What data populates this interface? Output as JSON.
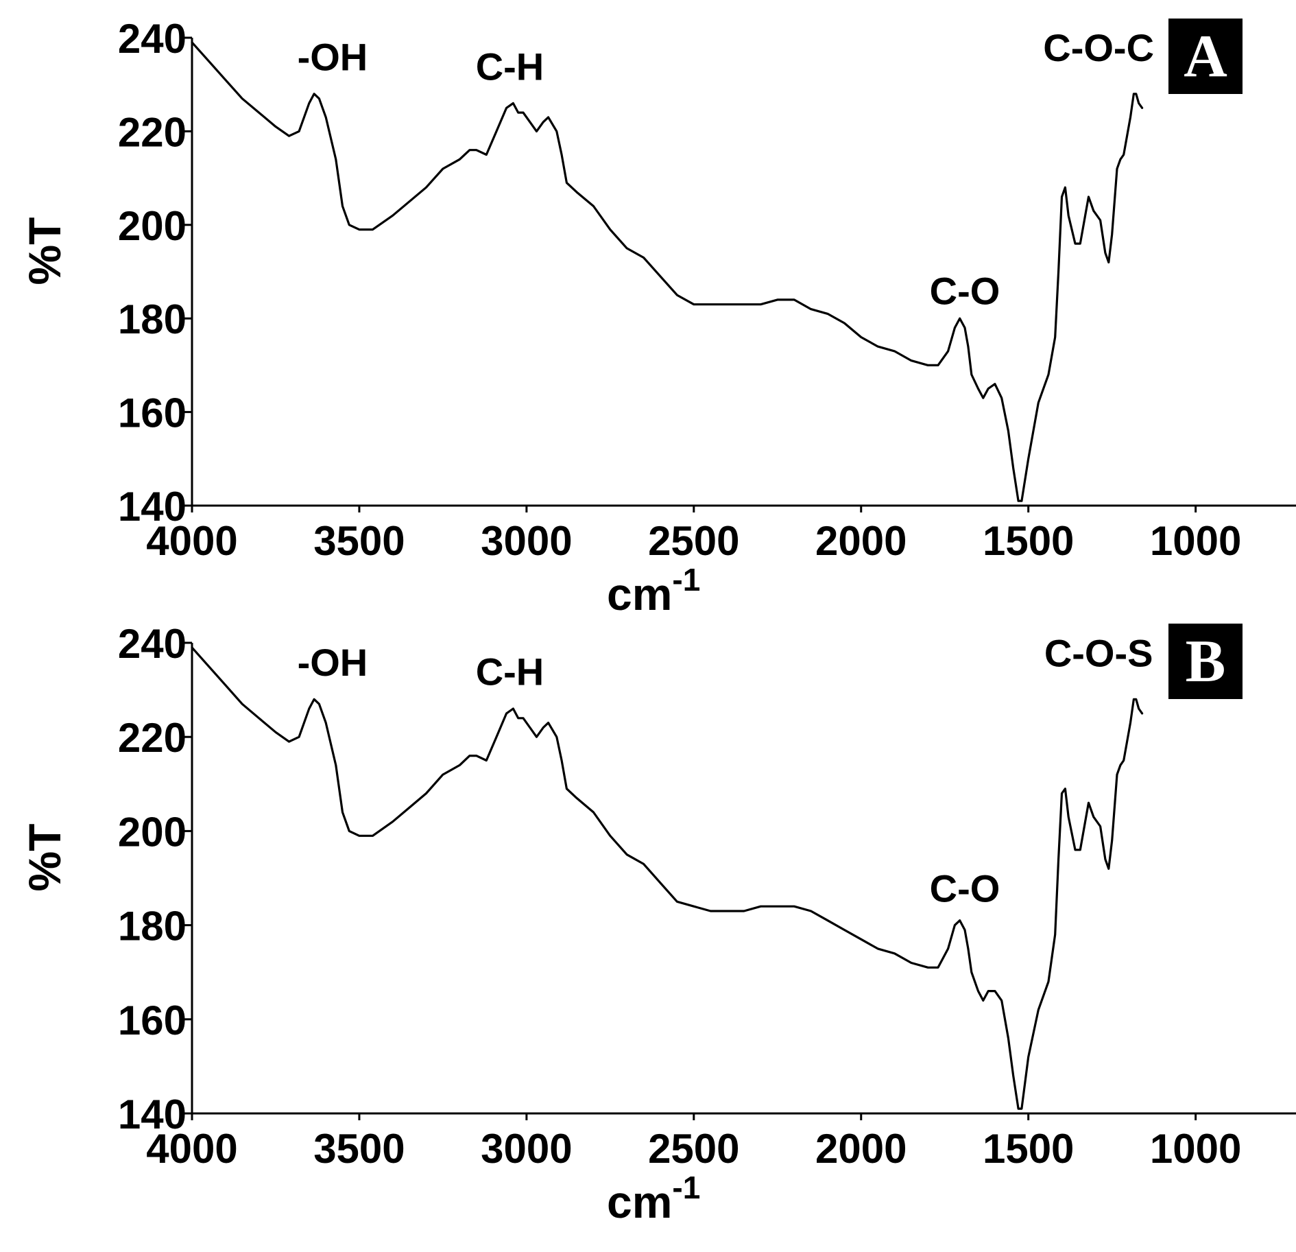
{
  "chart_data": [
    {
      "type": "line",
      "panel_label": "A",
      "xlabel": "cm",
      "xlabel_superscript": "-1",
      "ylabel": "%T",
      "xlim": [
        4000,
        700
      ],
      "ylim": [
        140,
        240
      ],
      "x_ticks": [
        4000,
        3500,
        3000,
        2500,
        2000,
        1500,
        1000
      ],
      "y_ticks": [
        140,
        160,
        180,
        200,
        220,
        240
      ],
      "x_tick_labels": [
        "4000",
        "3500",
        "3000",
        "2500",
        "2000",
        "1500",
        "1000"
      ],
      "y_tick_labels": [
        "140",
        "160",
        "180",
        "200",
        "220",
        "240"
      ],
      "grid": false,
      "annotations": [
        {
          "text": "-OH",
          "x": 3580,
          "y": 233
        },
        {
          "text": "C-H",
          "x": 3050,
          "y": 231
        },
        {
          "text": "C-O",
          "x": 1690,
          "y": 183
        },
        {
          "text": "C-O-C",
          "x": 1290,
          "y": 235
        }
      ],
      "series": [
        {
          "points": [
            [
              4000,
              239
            ],
            [
              3950,
              235
            ],
            [
              3900,
              231
            ],
            [
              3850,
              227
            ],
            [
              3800,
              224
            ],
            [
              3750,
              221
            ],
            [
              3710,
              219
            ],
            [
              3680,
              220
            ],
            [
              3650,
              226
            ],
            [
              3635,
              228
            ],
            [
              3620,
              227
            ],
            [
              3600,
              223
            ],
            [
              3570,
              214
            ],
            [
              3550,
              204
            ],
            [
              3530,
              200
            ],
            [
              3500,
              199
            ],
            [
              3460,
              199
            ],
            [
              3400,
              202
            ],
            [
              3350,
              205
            ],
            [
              3300,
              208
            ],
            [
              3250,
              212
            ],
            [
              3200,
              214
            ],
            [
              3170,
              216
            ],
            [
              3150,
              216
            ],
            [
              3120,
              215
            ],
            [
              3090,
              220
            ],
            [
              3060,
              225
            ],
            [
              3040,
              226
            ],
            [
              3025,
              224
            ],
            [
              3010,
              224
            ],
            [
              2990,
              222
            ],
            [
              2970,
              220
            ],
            [
              2950,
              222
            ],
            [
              2935,
              223
            ],
            [
              2910,
              220
            ],
            [
              2895,
              215
            ],
            [
              2880,
              209
            ],
            [
              2850,
              207
            ],
            [
              2800,
              204
            ],
            [
              2750,
              199
            ],
            [
              2700,
              195
            ],
            [
              2650,
              193
            ],
            [
              2600,
              189
            ],
            [
              2550,
              185
            ],
            [
              2500,
              183
            ],
            [
              2450,
              183
            ],
            [
              2400,
              183
            ],
            [
              2350,
              183
            ],
            [
              2300,
              183
            ],
            [
              2250,
              184
            ],
            [
              2200,
              184
            ],
            [
              2150,
              182
            ],
            [
              2100,
              181
            ],
            [
              2050,
              179
            ],
            [
              2000,
              176
            ],
            [
              1950,
              174
            ],
            [
              1900,
              173
            ],
            [
              1850,
              171
            ],
            [
              1800,
              170
            ],
            [
              1770,
              170
            ],
            [
              1740,
              173
            ],
            [
              1720,
              178
            ],
            [
              1705,
              180
            ],
            [
              1690,
              178
            ],
            [
              1680,
              174
            ],
            [
              1670,
              168
            ],
            [
              1650,
              165
            ],
            [
              1635,
              163
            ],
            [
              1620,
              165
            ],
            [
              1600,
              166
            ],
            [
              1580,
              163
            ],
            [
              1560,
              156
            ],
            [
              1545,
              148
            ],
            [
              1530,
              141
            ],
            [
              1520,
              141
            ],
            [
              1500,
              150
            ],
            [
              1470,
              162
            ],
            [
              1440,
              168
            ],
            [
              1420,
              176
            ],
            [
              1410,
              190
            ],
            [
              1400,
              206
            ],
            [
              1390,
              208
            ],
            [
              1380,
              202
            ],
            [
              1360,
              196
            ],
            [
              1345,
              196
            ],
            [
              1330,
              202
            ],
            [
              1320,
              206
            ],
            [
              1305,
              203
            ],
            [
              1285,
              201
            ],
            [
              1270,
              194
            ],
            [
              1260,
              192
            ],
            [
              1250,
              198
            ],
            [
              1235,
              212
            ],
            [
              1225,
              214
            ],
            [
              1215,
              215
            ],
            [
              1205,
              219
            ],
            [
              1195,
              223
            ],
            [
              1185,
              228
            ],
            [
              1178,
              228
            ],
            [
              1170,
              226
            ],
            [
              1160,
              225
            ]
          ]
        }
      ]
    },
    {
      "type": "line",
      "panel_label": "B",
      "xlabel": "cm",
      "xlabel_superscript": "-1",
      "ylabel": "%T",
      "xlim": [
        4000,
        700
      ],
      "ylim": [
        140,
        240
      ],
      "x_ticks": [
        4000,
        3500,
        3000,
        2500,
        2000,
        1500,
        1000
      ],
      "y_ticks": [
        140,
        160,
        180,
        200,
        220,
        240
      ],
      "x_tick_labels": [
        "4000",
        "3500",
        "3000",
        "2500",
        "2000",
        "1500",
        "1000"
      ],
      "y_tick_labels": [
        "140",
        "160",
        "180",
        "200",
        "220",
        "240"
      ],
      "grid": false,
      "annotations": [
        {
          "text": "-OH",
          "x": 3580,
          "y": 233
        },
        {
          "text": "C-H",
          "x": 3050,
          "y": 231
        },
        {
          "text": "C-O",
          "x": 1690,
          "y": 185
        },
        {
          "text": "C-O-S",
          "x": 1290,
          "y": 235
        }
      ],
      "series": [
        {
          "points": [
            [
              4000,
              239
            ],
            [
              3950,
              235
            ],
            [
              3900,
              231
            ],
            [
              3850,
              227
            ],
            [
              3800,
              224
            ],
            [
              3750,
              221
            ],
            [
              3710,
              219
            ],
            [
              3680,
              220
            ],
            [
              3650,
              226
            ],
            [
              3635,
              228
            ],
            [
              3620,
              227
            ],
            [
              3600,
              223
            ],
            [
              3570,
              214
            ],
            [
              3550,
              204
            ],
            [
              3530,
              200
            ],
            [
              3500,
              199
            ],
            [
              3460,
              199
            ],
            [
              3400,
              202
            ],
            [
              3350,
              205
            ],
            [
              3300,
              208
            ],
            [
              3250,
              212
            ],
            [
              3200,
              214
            ],
            [
              3170,
              216
            ],
            [
              3150,
              216
            ],
            [
              3120,
              215
            ],
            [
              3090,
              220
            ],
            [
              3060,
              225
            ],
            [
              3040,
              226
            ],
            [
              3025,
              224
            ],
            [
              3010,
              224
            ],
            [
              2990,
              222
            ],
            [
              2970,
              220
            ],
            [
              2950,
              222
            ],
            [
              2935,
              223
            ],
            [
              2910,
              220
            ],
            [
              2895,
              215
            ],
            [
              2880,
              209
            ],
            [
              2850,
              207
            ],
            [
              2800,
              204
            ],
            [
              2750,
              199
            ],
            [
              2700,
              195
            ],
            [
              2650,
              193
            ],
            [
              2600,
              189
            ],
            [
              2550,
              185
            ],
            [
              2500,
              184
            ],
            [
              2450,
              183
            ],
            [
              2400,
              183
            ],
            [
              2350,
              183
            ],
            [
              2300,
              184
            ],
            [
              2250,
              184
            ],
            [
              2200,
              184
            ],
            [
              2150,
              183
            ],
            [
              2100,
              181
            ],
            [
              2050,
              179
            ],
            [
              2000,
              177
            ],
            [
              1950,
              175
            ],
            [
              1900,
              174
            ],
            [
              1850,
              172
            ],
            [
              1800,
              171
            ],
            [
              1770,
              171
            ],
            [
              1740,
              175
            ],
            [
              1720,
              180
            ],
            [
              1705,
              181
            ],
            [
              1690,
              179
            ],
            [
              1680,
              175
            ],
            [
              1670,
              170
            ],
            [
              1650,
              166
            ],
            [
              1635,
              164
            ],
            [
              1620,
              166
            ],
            [
              1600,
              166
            ],
            [
              1580,
              164
            ],
            [
              1560,
              156
            ],
            [
              1545,
              148
            ],
            [
              1530,
              141
            ],
            [
              1520,
              141
            ],
            [
              1500,
              152
            ],
            [
              1470,
              162
            ],
            [
              1440,
              168
            ],
            [
              1420,
              178
            ],
            [
              1410,
              194
            ],
            [
              1400,
              208
            ],
            [
              1390,
              209
            ],
            [
              1380,
              203
            ],
            [
              1360,
              196
            ],
            [
              1345,
              196
            ],
            [
              1330,
              202
            ],
            [
              1320,
              206
            ],
            [
              1305,
              203
            ],
            [
              1285,
              201
            ],
            [
              1270,
              194
            ],
            [
              1260,
              192
            ],
            [
              1250,
              198
            ],
            [
              1235,
              212
            ],
            [
              1225,
              214
            ],
            [
              1215,
              215
            ],
            [
              1205,
              219
            ],
            [
              1195,
              223
            ],
            [
              1185,
              228
            ],
            [
              1178,
              228
            ],
            [
              1170,
              226
            ],
            [
              1160,
              225
            ]
          ]
        }
      ]
    }
  ]
}
